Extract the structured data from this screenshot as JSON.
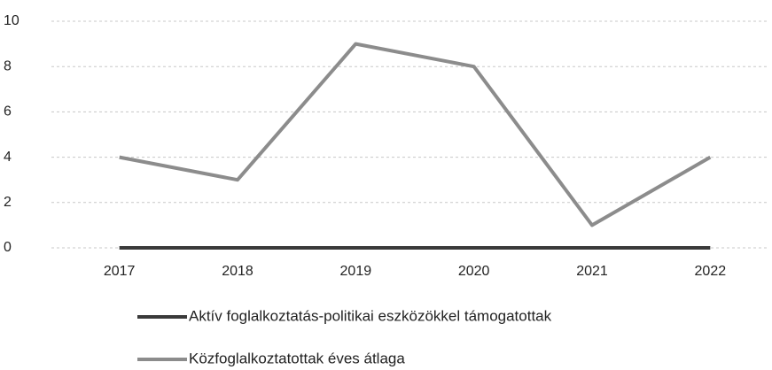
{
  "chart_data": {
    "type": "line",
    "categories": [
      "2017",
      "2018",
      "2019",
      "2020",
      "2021",
      "2022"
    ],
    "series": [
      {
        "name": "Aktív foglalkoztatás-politikai eszközökkel támogatottak",
        "color": "#3a3a3a",
        "values": [
          0,
          0,
          0,
          0,
          0,
          0
        ]
      },
      {
        "name": "Közfoglalkoztatottak éves átlaga",
        "color": "#8c8c8c",
        "values": [
          4,
          3,
          9,
          8,
          1,
          4
        ]
      }
    ],
    "ylim": [
      0,
      10
    ],
    "yticks": [
      0,
      2,
      4,
      6,
      8,
      10
    ],
    "grid": true
  }
}
